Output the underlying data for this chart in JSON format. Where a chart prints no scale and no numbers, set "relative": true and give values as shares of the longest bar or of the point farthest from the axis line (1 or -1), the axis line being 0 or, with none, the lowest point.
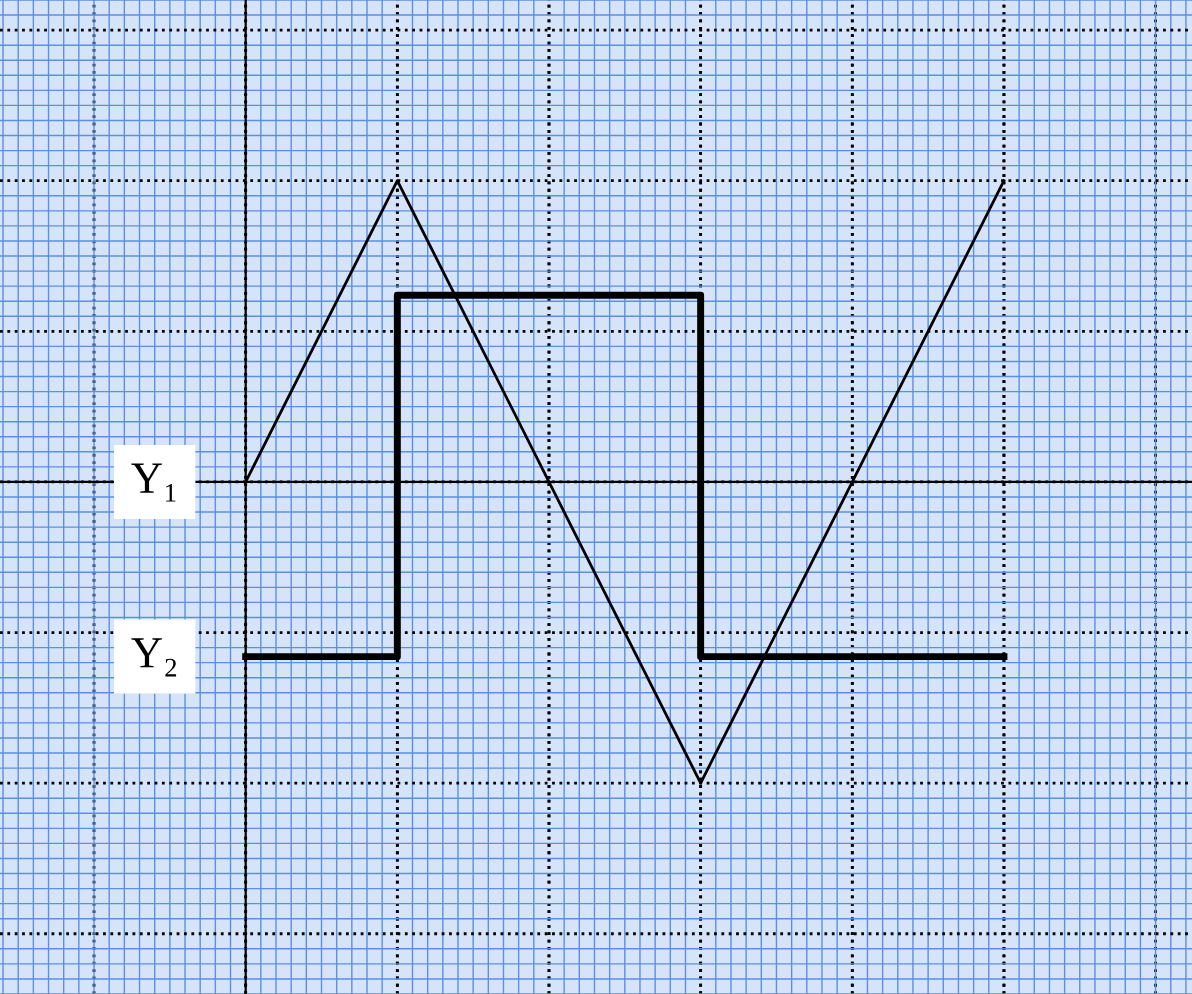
{
  "chart_data": {
    "type": "line",
    "relative": true,
    "categories": [
      null,
      null,
      null,
      null,
      null,
      null
    ],
    "series": [
      {
        "name": "Y₁",
        "color": "#000000",
        "values": [
          0,
          1,
          0,
          -1,
          0,
          1
        ]
      },
      {
        "name": "Y₂",
        "color": "#000000",
        "type": "step",
        "values": [
          -0.58,
          0.62,
          0.62,
          -0.58,
          -0.58,
          -0.58
        ]
      }
    ],
    "grid": true,
    "legend": false,
    "marker": "none",
    "line_style": "solid"
  }
}
